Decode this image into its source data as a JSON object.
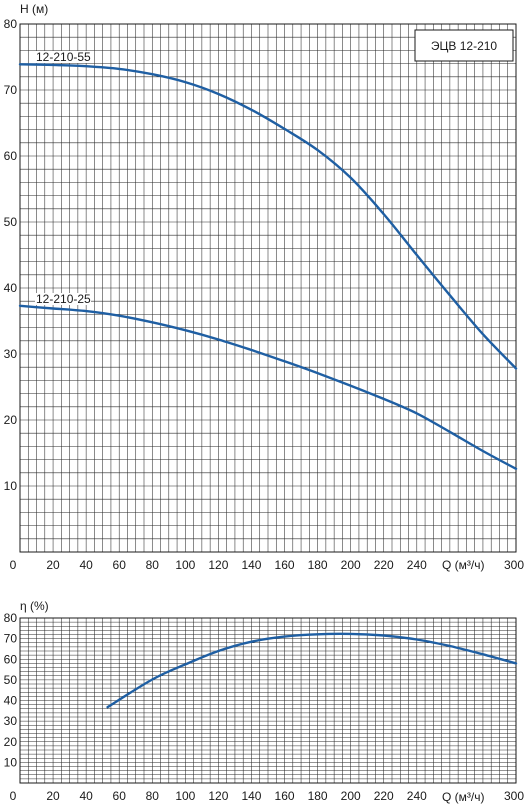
{
  "chart_data": [
    {
      "type": "line",
      "title": "ЭЦВ 12-210",
      "xlabel": "Q (м³/ч)",
      "ylabel": "H (м)",
      "xlim": [
        0,
        300
      ],
      "ylim": [
        0,
        80
      ],
      "grid": true,
      "x_ticks": [
        0,
        20,
        40,
        60,
        80,
        100,
        120,
        140,
        160,
        180,
        200,
        220,
        240,
        300
      ],
      "y_ticks": [
        10,
        20,
        30,
        40,
        50,
        60,
        70,
        80
      ],
      "series": [
        {
          "name": "12-210-55",
          "x": [
            0,
            20,
            40,
            60,
            80,
            100,
            120,
            140,
            160,
            180,
            200,
            220,
            240,
            260,
            280,
            300
          ],
          "y": [
            73.9,
            73.8,
            73.6,
            73.2,
            72.4,
            71.2,
            69.4,
            67.0,
            64.1,
            60.9,
            56.7,
            51.2,
            45.0,
            38.9,
            33.0,
            27.8
          ]
        },
        {
          "name": "12-210-25",
          "x": [
            0,
            20,
            40,
            60,
            80,
            100,
            120,
            140,
            160,
            180,
            200,
            220,
            240,
            260,
            280,
            300
          ],
          "y": [
            37.3,
            36.9,
            36.5,
            35.8,
            34.8,
            33.6,
            32.2,
            30.6,
            28.9,
            27.1,
            25.2,
            23.2,
            21.0,
            18.2,
            15.3,
            12.6
          ]
        }
      ]
    },
    {
      "type": "line",
      "title": "",
      "xlabel": "Q (м³/ч)",
      "ylabel": "η (%)",
      "xlim": [
        0,
        300
      ],
      "ylim": [
        0,
        80
      ],
      "grid": true,
      "x_ticks": [
        0,
        20,
        40,
        60,
        80,
        100,
        120,
        140,
        160,
        180,
        200,
        220,
        240,
        300
      ],
      "y_ticks": [
        10,
        20,
        30,
        40,
        50,
        60,
        70,
        80
      ],
      "series": [
        {
          "x": [
            53,
            80,
            100,
            120,
            140,
            160,
            180,
            200,
            220,
            240,
            260,
            280,
            300
          ],
          "y": [
            36.8,
            50.2,
            57.5,
            64.0,
            68.5,
            71.0,
            72.1,
            72.3,
            71.5,
            69.6,
            66.4,
            62.4,
            58.0
          ]
        }
      ]
    }
  ]
}
